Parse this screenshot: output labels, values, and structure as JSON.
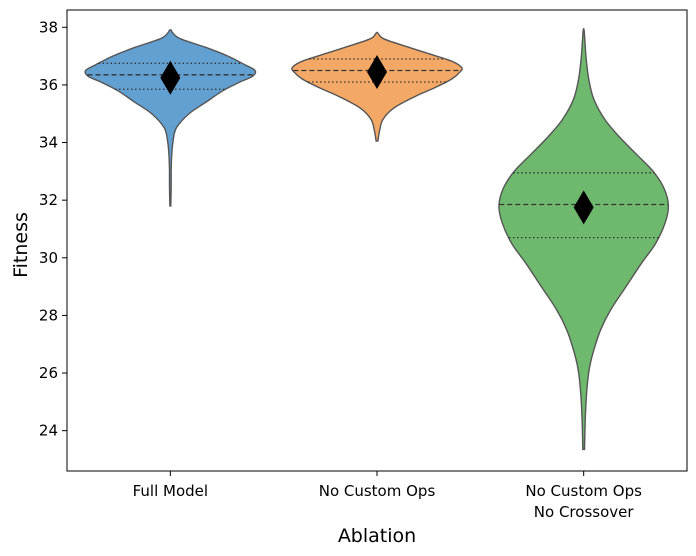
{
  "chart_data": {
    "type": "violin",
    "xlabel": "Ablation",
    "ylabel": "Fitness",
    "ylim": [
      22.6,
      38.6
    ],
    "yticks": [
      24,
      26,
      28,
      30,
      32,
      34,
      36,
      38
    ],
    "categories": [
      {
        "label_lines": [
          "Full Model"
        ],
        "color": "#5b9bd0"
      },
      {
        "label_lines": [
          "No Custom Ops"
        ],
        "color": "#f3a35e"
      },
      {
        "label_lines": [
          "No Custom Ops",
          "No Crossover"
        ],
        "color": "#66b566"
      }
    ],
    "series": [
      {
        "category": "Full Model",
        "min": 31.8,
        "q1": 35.85,
        "median": 36.35,
        "q3": 36.75,
        "max": 37.9,
        "mean": 36.25,
        "density": [
          [
            31.8,
            0.005
          ],
          [
            32.5,
            0.01
          ],
          [
            33.0,
            0.01
          ],
          [
            33.5,
            0.015
          ],
          [
            34.0,
            0.03
          ],
          [
            34.5,
            0.07
          ],
          [
            35.0,
            0.22
          ],
          [
            35.4,
            0.42
          ],
          [
            35.8,
            0.62
          ],
          [
            36.1,
            0.82
          ],
          [
            36.3,
            0.97
          ],
          [
            36.5,
            1.0
          ],
          [
            36.7,
            0.88
          ],
          [
            37.0,
            0.68
          ],
          [
            37.3,
            0.42
          ],
          [
            37.6,
            0.12
          ],
          [
            37.8,
            0.03
          ],
          [
            37.9,
            0.01
          ]
        ]
      },
      {
        "category": "No Custom Ops",
        "min": 34.05,
        "q1": 36.1,
        "median": 36.5,
        "q3": 36.9,
        "max": 37.8,
        "mean": 36.45,
        "density": [
          [
            34.05,
            0.01
          ],
          [
            34.4,
            0.03
          ],
          [
            34.8,
            0.07
          ],
          [
            35.2,
            0.2
          ],
          [
            35.6,
            0.45
          ],
          [
            35.9,
            0.68
          ],
          [
            36.2,
            0.88
          ],
          [
            36.45,
            0.98
          ],
          [
            36.6,
            1.0
          ],
          [
            36.8,
            0.9
          ],
          [
            37.0,
            0.7
          ],
          [
            37.3,
            0.38
          ],
          [
            37.6,
            0.08
          ],
          [
            37.8,
            0.01
          ]
        ]
      },
      {
        "category": "No Custom Ops No Crossover",
        "min": 23.35,
        "q1": 30.7,
        "median": 31.85,
        "q3": 32.95,
        "max": 37.9,
        "mean": 31.75,
        "density": [
          [
            23.35,
            0.01
          ],
          [
            24.5,
            0.02
          ],
          [
            25.5,
            0.04
          ],
          [
            26.2,
            0.07
          ],
          [
            26.8,
            0.12
          ],
          [
            27.5,
            0.2
          ],
          [
            28.2,
            0.32
          ],
          [
            29.0,
            0.5
          ],
          [
            29.8,
            0.68
          ],
          [
            30.5,
            0.85
          ],
          [
            31.2,
            0.96
          ],
          [
            31.8,
            1.0
          ],
          [
            32.4,
            0.95
          ],
          [
            33.0,
            0.82
          ],
          [
            33.6,
            0.62
          ],
          [
            34.2,
            0.42
          ],
          [
            34.8,
            0.25
          ],
          [
            35.5,
            0.12
          ],
          [
            36.2,
            0.06
          ],
          [
            36.9,
            0.03
          ],
          [
            37.5,
            0.015
          ],
          [
            37.9,
            0.005
          ]
        ]
      }
    ]
  }
}
